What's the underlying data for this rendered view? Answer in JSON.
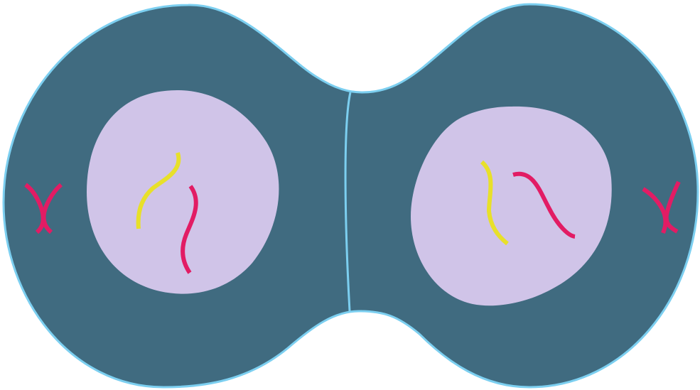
{
  "colors": {
    "background": "#ffffff",
    "cytoplasm": "#406b80",
    "membrane": "#7ccff0",
    "nucleus": "#d0c4e8",
    "chromosome_yellow": "#e8e02a",
    "chromosome_pink": "#e21c64"
  },
  "diagram": {
    "cells": [
      {
        "id": "left-daughter-cell",
        "nucleus_chromosomes": [
          "yellow",
          "pink"
        ],
        "cytoplasm_chromosomes": [
          "pink"
        ]
      },
      {
        "id": "right-daughter-cell",
        "nucleus_chromosomes": [
          "yellow",
          "pink"
        ],
        "cytoplasm_chromosomes": [
          "pink"
        ]
      }
    ]
  }
}
